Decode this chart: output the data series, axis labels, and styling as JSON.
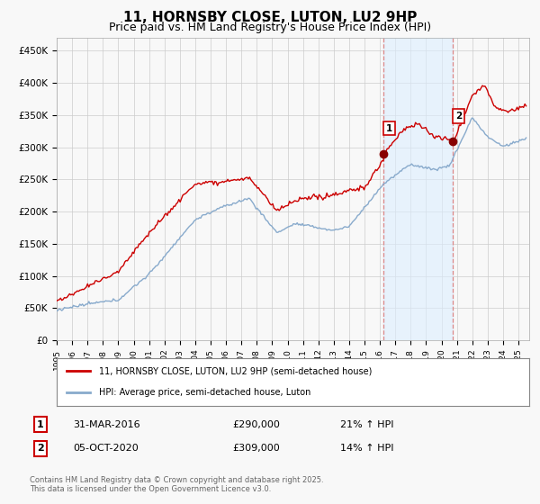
{
  "title": "11, HORNSBY CLOSE, LUTON, LU2 9HP",
  "subtitle": "Price paid vs. HM Land Registry's House Price Index (HPI)",
  "title_fontsize": 11,
  "subtitle_fontsize": 9,
  "ylabel_ticks": [
    "£0",
    "£50K",
    "£100K",
    "£150K",
    "£200K",
    "£250K",
    "£300K",
    "£350K",
    "£400K",
    "£450K"
  ],
  "ytick_vals": [
    0,
    50000,
    100000,
    150000,
    200000,
    250000,
    300000,
    350000,
    400000,
    450000
  ],
  "ylim": [
    0,
    470000
  ],
  "xlim_start": 1995.3,
  "xlim_end": 2025.7,
  "marker1_x": 2016.25,
  "marker1_y": 290000,
  "marker1_label": "1",
  "marker2_x": 2020.75,
  "marker2_y": 309000,
  "marker2_label": "2",
  "legend_line1": "11, HORNSBY CLOSE, LUTON, LU2 9HP (semi-detached house)",
  "legend_line2": "HPI: Average price, semi-detached house, Luton",
  "table_row1_num": "1",
  "table_row1_date": "31-MAR-2016",
  "table_row1_price": "£290,000",
  "table_row1_hpi": "21% ↑ HPI",
  "table_row2_num": "2",
  "table_row2_date": "05-OCT-2020",
  "table_row2_price": "£309,000",
  "table_row2_hpi": "14% ↑ HPI",
  "footer": "Contains HM Land Registry data © Crown copyright and database right 2025.\nThis data is licensed under the Open Government Licence v3.0.",
  "line_color_red": "#cc0000",
  "line_color_blue": "#88aacc",
  "vline_color": "#dd8888",
  "shade_color": "#ddeeff",
  "bg_color": "#f8f8f8",
  "grid_color": "#cccccc"
}
